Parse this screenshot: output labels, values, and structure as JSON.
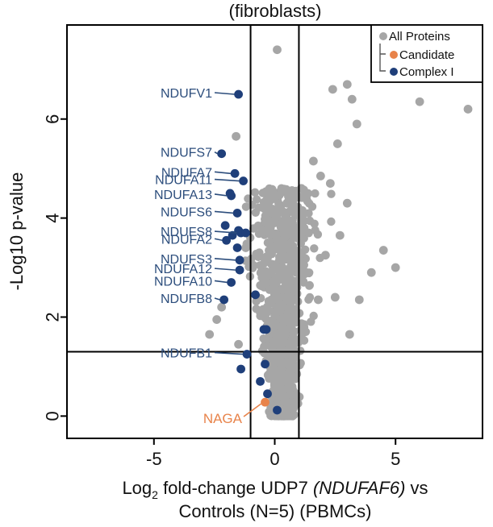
{
  "chart_data": {
    "type": "scatter",
    "title": "(fibroblasts)",
    "xlabel_parts": {
      "prefix": "Log",
      "subscript": "2",
      "middle": " fold-change UDP7 ",
      "italic": "(NDUFAF6)",
      "suffix": " vs"
    },
    "xlabel_line2": "Controls (N=5) (PBMCs)",
    "ylabel": "-Log10 p-value",
    "xlim": [
      -8.6,
      8.6
    ],
    "ylim": [
      -0.45,
      7.9
    ],
    "xticks": [
      -5,
      0,
      5
    ],
    "xtick_labels": [
      "-5",
      "0",
      "5"
    ],
    "yticks": [
      0,
      2,
      4,
      6
    ],
    "ytick_labels": [
      "0",
      "2",
      "4",
      "6"
    ],
    "thresholds": {
      "x": [
        -1,
        1
      ],
      "y": 1.3
    },
    "legend": {
      "position": "top-right",
      "entries": [
        {
          "label": "All Proteins",
          "color": "#a6a6a6"
        },
        {
          "label": "Candidate",
          "color": "#e8834a"
        },
        {
          "label": "Complex I",
          "color": "#1f3f7a"
        }
      ]
    },
    "colors": {
      "all": "#a6a6a6",
      "candidate": "#e8834a",
      "complex": "#1f3f7a",
      "label_text": "#2c4d7c",
      "candidate_text": "#e8834a"
    },
    "background_points": [
      [
        0.1,
        7.4
      ],
      [
        3.0,
        6.7
      ],
      [
        3.2,
        6.4
      ],
      [
        2.4,
        6.6
      ],
      [
        6.0,
        6.35
      ],
      [
        8.0,
        6.2
      ],
      [
        3.4,
        5.9
      ],
      [
        -1.6,
        5.65
      ],
      [
        2.6,
        5.5
      ],
      [
        1.6,
        5.15
      ],
      [
        1.1,
        4.6
      ],
      [
        2.3,
        4.7
      ],
      [
        1.9,
        4.85
      ],
      [
        3.0,
        4.3
      ],
      [
        4.5,
        3.35
      ],
      [
        5.0,
        3.0
      ],
      [
        4.0,
        2.9
      ],
      [
        3.5,
        2.35
      ],
      [
        2.5,
        2.4
      ],
      [
        3.1,
        1.65
      ],
      [
        -2.2,
        2.2
      ],
      [
        -2.4,
        1.95
      ],
      [
        -1.5,
        1.45
      ],
      [
        -2.7,
        1.65
      ],
      [
        1.4,
        3.7
      ],
      [
        0.9,
        3.6
      ],
      [
        1.3,
        2.9
      ],
      [
        -0.9,
        3.05
      ],
      [
        -1.2,
        3.4
      ],
      [
        -0.6,
        2.1
      ],
      [
        2.1,
        3.25
      ],
      [
        2.7,
        3.65
      ],
      [
        1.8,
        2.35
      ],
      [
        -0.3,
        3.2
      ],
      [
        0.5,
        4.3
      ],
      [
        1.0,
        4.1
      ]
    ],
    "complex_points": [
      {
        "x": -1.5,
        "y": 6.5,
        "label": "NDUFV1"
      },
      {
        "x": -2.2,
        "y": 5.3,
        "label": "NDUFS7"
      },
      {
        "x": -1.65,
        "y": 4.9,
        "label": "NDUFA7"
      },
      {
        "x": -1.3,
        "y": 4.75,
        "label": "NDUFA11"
      },
      {
        "x": -1.8,
        "y": 4.45,
        "label": "NDUFA13"
      },
      {
        "x": -1.55,
        "y": 4.1,
        "label": "NDUFS6"
      },
      {
        "x": -1.4,
        "y": 3.7,
        "label": "NDUFS8"
      },
      {
        "x": -2.0,
        "y": 3.55,
        "label": "NDUFA2"
      },
      {
        "x": -1.45,
        "y": 3.15,
        "label": "NDUFS3"
      },
      {
        "x": -1.45,
        "y": 2.95,
        "label": "NDUFA12"
      },
      {
        "x": -1.8,
        "y": 2.7,
        "label": "NDUFA10"
      },
      {
        "x": -2.1,
        "y": 2.35,
        "label": "NDUFB8"
      },
      {
        "x": -1.15,
        "y": 1.25,
        "label": "NDUFB1"
      },
      {
        "x": -1.85,
        "y": 4.5,
        "label": ""
      },
      {
        "x": -2.05,
        "y": 3.85,
        "label": ""
      },
      {
        "x": -1.5,
        "y": 3.75,
        "label": ""
      },
      {
        "x": -1.2,
        "y": 3.7,
        "label": ""
      },
      {
        "x": -1.75,
        "y": 3.65,
        "label": ""
      },
      {
        "x": -1.55,
        "y": 3.4,
        "label": ""
      },
      {
        "x": -0.8,
        "y": 2.45,
        "label": ""
      },
      {
        "x": -0.45,
        "y": 1.75,
        "label": ""
      },
      {
        "x": -0.35,
        "y": 1.75,
        "label": ""
      },
      {
        "x": -0.4,
        "y": 1.05,
        "label": ""
      },
      {
        "x": -1.4,
        "y": 0.95,
        "label": ""
      },
      {
        "x": -0.6,
        "y": 0.7,
        "label": ""
      },
      {
        "x": -0.3,
        "y": 0.45,
        "label": ""
      },
      {
        "x": 0.1,
        "y": 0.12,
        "label": ""
      }
    ],
    "candidate_points": [
      {
        "x": -0.4,
        "y": 0.28,
        "label": "NAGA"
      }
    ]
  }
}
